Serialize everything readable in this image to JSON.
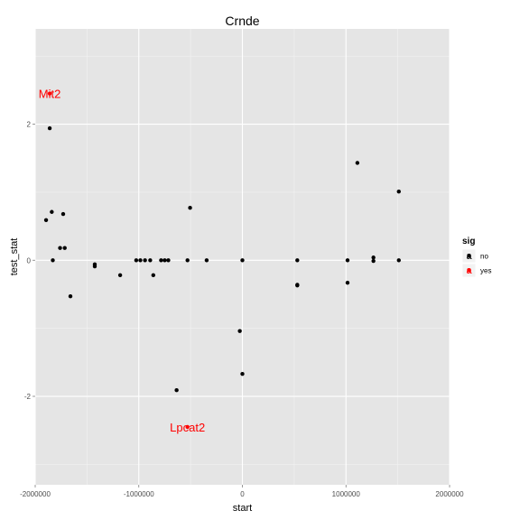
{
  "chart_data": {
    "type": "scatter",
    "title": "Crnde",
    "xlabel": "start",
    "ylabel": "test_stat",
    "xlim": [
      -2000000,
      2000000
    ],
    "ylim": [
      -3.3,
      3.4
    ],
    "x_ticks": [
      -2000000,
      -1000000,
      0,
      1000000,
      2000000
    ],
    "x_tick_labels": [
      "-2000000",
      "-1000000",
      "0",
      "1000000",
      "2000000"
    ],
    "y_ticks": [
      -2,
      0,
      2
    ],
    "y_tick_labels": [
      "-2",
      "0",
      "2"
    ],
    "grid": true,
    "legend": {
      "title": "sig",
      "position": "right",
      "entries": [
        {
          "label": "no",
          "key_text": "a",
          "color": "#000000"
        },
        {
          "label": "yes",
          "key_text": "a",
          "color": "#ff0000"
        }
      ]
    },
    "colors": {
      "panel": "#e5e5e5",
      "grid_major": "#ffffff",
      "grid_minor": "#f2f2f2",
      "no": "#000000",
      "yes": "#ff0000",
      "text": "#000000",
      "tick_label": "#4d4d4d"
    },
    "series": [
      {
        "name": "no",
        "points": [
          {
            "x": -1860000,
            "y": 1.94
          },
          {
            "x": -1895000,
            "y": 0.59
          },
          {
            "x": -1840000,
            "y": 0.71
          },
          {
            "x": -1730000,
            "y": 0.68
          },
          {
            "x": -1830000,
            "y": 0.0
          },
          {
            "x": -1760000,
            "y": 0.18
          },
          {
            "x": -1715000,
            "y": 0.18
          },
          {
            "x": -1660000,
            "y": -0.53
          },
          {
            "x": -1425000,
            "y": -0.06
          },
          {
            "x": -1425000,
            "y": -0.09
          },
          {
            "x": -1180000,
            "y": -0.22
          },
          {
            "x": -1025000,
            "y": 0.0
          },
          {
            "x": -985000,
            "y": 0.0
          },
          {
            "x": -940000,
            "y": 0.0
          },
          {
            "x": -890000,
            "y": 0.0
          },
          {
            "x": -860000,
            "y": -0.22
          },
          {
            "x": -785000,
            "y": 0.0
          },
          {
            "x": -750000,
            "y": 0.0
          },
          {
            "x": -715000,
            "y": 0.0
          },
          {
            "x": -530000,
            "y": 0.0
          },
          {
            "x": -505000,
            "y": 0.77
          },
          {
            "x": -635000,
            "y": -1.91
          },
          {
            "x": -345000,
            "y": 0.0
          },
          {
            "x": -25000,
            "y": -1.04
          },
          {
            "x": 0,
            "y": 0.0
          },
          {
            "x": 0,
            "y": -1.67
          },
          {
            "x": 530000,
            "y": 0.0
          },
          {
            "x": 530000,
            "y": -0.36
          },
          {
            "x": 530000,
            "y": -0.37
          },
          {
            "x": 1015000,
            "y": 0.0
          },
          {
            "x": 1015000,
            "y": -0.33
          },
          {
            "x": 1110000,
            "y": 1.43
          },
          {
            "x": 1265000,
            "y": 0.04
          },
          {
            "x": 1265000,
            "y": -0.01
          },
          {
            "x": 1510000,
            "y": 1.01
          },
          {
            "x": 1510000,
            "y": 0.0
          }
        ]
      },
      {
        "name": "yes",
        "points": [
          {
            "x": -1860000,
            "y": 2.45,
            "label": "Mit2"
          },
          {
            "x": -530000,
            "y": -2.45,
            "label": "Lpcat2"
          }
        ]
      }
    ]
  }
}
